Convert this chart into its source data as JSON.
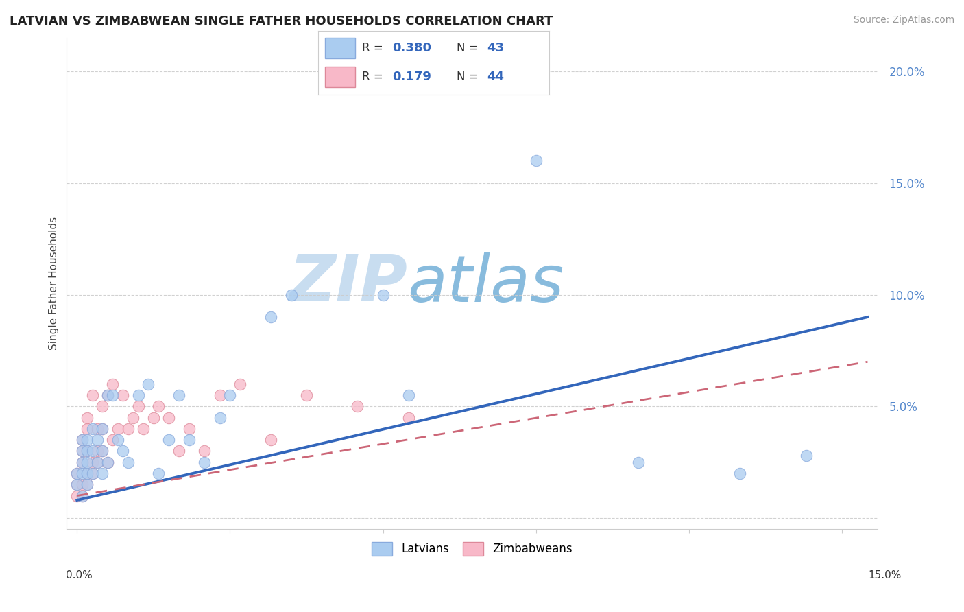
{
  "title": "LATVIAN VS ZIMBABWEAN SINGLE FATHER HOUSEHOLDS CORRELATION CHART",
  "source": "Source: ZipAtlas.com",
  "ylabel": "Single Father Households",
  "yticks": [
    0.0,
    0.05,
    0.1,
    0.15,
    0.2
  ],
  "ytick_labels": [
    "",
    "5.0%",
    "10.0%",
    "15.0%",
    "20.0%"
  ],
  "xlim": [
    -0.002,
    0.157
  ],
  "ylim": [
    -0.005,
    0.215
  ],
  "latvian_R": 0.38,
  "latvian_N": 43,
  "zimbabwean_R": 0.179,
  "zimbabwean_N": 44,
  "latvian_color": "#aaccf0",
  "latvian_edge_color": "#88aadd",
  "zimbabwean_color": "#f8b8c8",
  "zimbabwean_edge_color": "#dd8899",
  "latvian_line_color": "#3366bb",
  "zimbabwean_line_color": "#cc6677",
  "background_color": "#ffffff",
  "grid_color": "#cccccc",
  "watermark_color_zip": "#c8ddf0",
  "watermark_color_atlas": "#88bbdd",
  "title_fontsize": 13,
  "latvian_x": [
    0.0,
    0.0,
    0.001,
    0.001,
    0.001,
    0.001,
    0.001,
    0.002,
    0.002,
    0.002,
    0.002,
    0.002,
    0.003,
    0.003,
    0.003,
    0.004,
    0.004,
    0.005,
    0.005,
    0.005,
    0.006,
    0.006,
    0.007,
    0.008,
    0.009,
    0.01,
    0.012,
    0.014,
    0.016,
    0.018,
    0.02,
    0.022,
    0.025,
    0.028,
    0.03,
    0.038,
    0.042,
    0.06,
    0.065,
    0.09,
    0.11,
    0.13,
    0.143
  ],
  "latvian_y": [
    0.015,
    0.02,
    0.01,
    0.02,
    0.03,
    0.025,
    0.035,
    0.015,
    0.025,
    0.03,
    0.02,
    0.035,
    0.02,
    0.03,
    0.04,
    0.025,
    0.035,
    0.02,
    0.03,
    0.04,
    0.025,
    0.055,
    0.055,
    0.035,
    0.03,
    0.025,
    0.055,
    0.06,
    0.02,
    0.035,
    0.055,
    0.035,
    0.025,
    0.045,
    0.055,
    0.09,
    0.1,
    0.1,
    0.055,
    0.16,
    0.025,
    0.02,
    0.028
  ],
  "zimbabwean_x": [
    0.0,
    0.0,
    0.0,
    0.001,
    0.001,
    0.001,
    0.001,
    0.001,
    0.002,
    0.002,
    0.002,
    0.002,
    0.002,
    0.003,
    0.003,
    0.003,
    0.004,
    0.004,
    0.004,
    0.005,
    0.005,
    0.005,
    0.006,
    0.006,
    0.007,
    0.007,
    0.008,
    0.009,
    0.01,
    0.011,
    0.012,
    0.013,
    0.015,
    0.016,
    0.018,
    0.02,
    0.022,
    0.025,
    0.028,
    0.032,
    0.038,
    0.045,
    0.055,
    0.065
  ],
  "zimbabwean_y": [
    0.01,
    0.015,
    0.02,
    0.01,
    0.015,
    0.025,
    0.03,
    0.035,
    0.015,
    0.02,
    0.03,
    0.04,
    0.045,
    0.02,
    0.025,
    0.055,
    0.025,
    0.03,
    0.04,
    0.03,
    0.04,
    0.05,
    0.025,
    0.055,
    0.035,
    0.06,
    0.04,
    0.055,
    0.04,
    0.045,
    0.05,
    0.04,
    0.045,
    0.05,
    0.045,
    0.03,
    0.04,
    0.03,
    0.055,
    0.06,
    0.035,
    0.055,
    0.05,
    0.045
  ],
  "latvian_line_x0": 0.0,
  "latvian_line_y0": 0.008,
  "latvian_line_x1": 0.155,
  "latvian_line_y1": 0.09,
  "zimbabwean_line_x0": 0.0,
  "zimbabwean_line_y0": 0.01,
  "zimbabwean_line_x1": 0.155,
  "zimbabwean_line_y1": 0.07
}
